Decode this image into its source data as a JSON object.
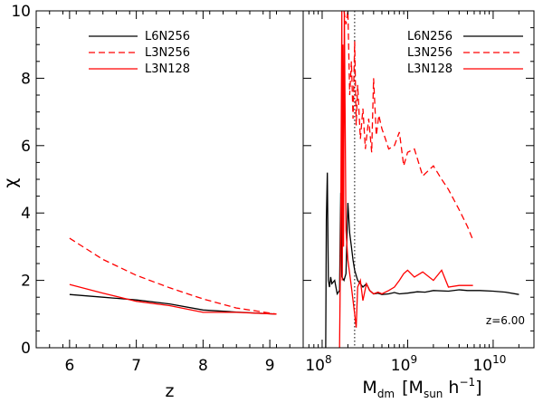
{
  "chart_data": [
    {
      "type": "line",
      "panel": "left",
      "xlabel": "z",
      "ylabel": "χ",
      "xlim": [
        5.5,
        9.5
      ],
      "ylim": [
        0,
        10
      ],
      "xticks": [
        6,
        7,
        8,
        9
      ],
      "yticks": [
        0,
        2,
        4,
        6,
        8,
        10
      ],
      "legend_position": "top-left",
      "series": [
        {
          "name": "L6N256",
          "color": "#000000",
          "dash": "solid",
          "x": [
            6.0,
            6.5,
            7.0,
            7.5,
            8.0,
            8.5,
            9.1
          ],
          "y": [
            1.58,
            1.5,
            1.42,
            1.3,
            1.12,
            1.06,
            1.0
          ]
        },
        {
          "name": "L3N256",
          "color": "#ff0000",
          "dash": "dashed",
          "x": [
            6.0,
            6.5,
            7.0,
            7.5,
            8.0,
            8.5,
            9.1
          ],
          "y": [
            3.25,
            2.62,
            2.15,
            1.78,
            1.45,
            1.18,
            1.0
          ]
        },
        {
          "name": "L3N128",
          "color": "#ff0000",
          "dash": "solid",
          "x": [
            6.0,
            6.5,
            7.0,
            7.5,
            8.0,
            8.5,
            9.1
          ],
          "y": [
            1.88,
            1.62,
            1.38,
            1.25,
            1.05,
            1.05,
            1.0
          ]
        }
      ]
    },
    {
      "type": "line",
      "panel": "right",
      "xlabel_main": "M",
      "xlabel_main_sub": "dm",
      "xlabel_unit_open": "[M",
      "xlabel_unit_sub": "sun",
      "xlabel_unit_h": "h",
      "xlabel_unit_exp": "−1",
      "xlabel_unit_close": "]",
      "xscale": "log",
      "xlim": [
        60000000,
        30000000000
      ],
      "ylim": [
        0,
        10
      ],
      "xtick_values": [
        100000000,
        1000000000,
        10000000000
      ],
      "xtick_labels": [
        {
          "base": "10",
          "exp": "8"
        },
        {
          "base": "10",
          "exp": "9"
        },
        {
          "base": "10",
          "exp": "10"
        }
      ],
      "yticks": [
        0,
        2,
        4,
        6,
        8,
        10
      ],
      "legend_position": "top-right",
      "annotation": "z=6.00",
      "vline_x": 240000000,
      "series": [
        {
          "name": "L6N256",
          "color": "#000000",
          "dash": "solid",
          "x": [
            110000000,
            112000000,
            115000000,
            118000000,
            122000000,
            126000000,
            130000000,
            140000000,
            150000000,
            160000000,
            165000000,
            170000000,
            180000000,
            190000000,
            200000000,
            210000000,
            220000000,
            230000000,
            240000000,
            260000000,
            280000000,
            300000000,
            330000000,
            360000000,
            400000000,
            450000000,
            500000000,
            600000000,
            700000000,
            800000000,
            1000000000,
            1300000000,
            1600000000,
            2000000000,
            3000000000,
            4000000000,
            5000000000,
            7000000000,
            10000000000,
            14000000000,
            20000000000
          ],
          "y": [
            0.0,
            3.8,
            5.2,
            2.0,
            1.8,
            2.1,
            1.9,
            2.0,
            1.6,
            1.7,
            4.6,
            2.1,
            2.0,
            2.2,
            4.3,
            3.4,
            3.0,
            2.6,
            2.3,
            2.0,
            1.9,
            1.8,
            1.9,
            1.7,
            1.6,
            1.62,
            1.58,
            1.6,
            1.64,
            1.6,
            1.62,
            1.66,
            1.65,
            1.7,
            1.68,
            1.72,
            1.7,
            1.7,
            1.68,
            1.65,
            1.58
          ]
        },
        {
          "name": "L3N256",
          "color": "#ff0000",
          "dash": "dashed",
          "x": [
            180000000,
            190000000,
            200000000,
            210000000,
            220000000,
            230000000,
            240000000,
            250000000,
            260000000,
            280000000,
            300000000,
            320000000,
            350000000,
            380000000,
            400000000,
            430000000,
            460000000,
            500000000,
            550000000,
            600000000,
            700000000,
            800000000,
            900000000,
            1000000000,
            1200000000,
            1500000000,
            2000000000,
            2500000000,
            3000000000,
            4000000000,
            5000000000,
            5800000000
          ],
          "y": [
            10.0,
            9.6,
            10.0,
            7.5,
            8.5,
            6.8,
            9.1,
            6.6,
            7.8,
            6.2,
            7.1,
            5.9,
            6.8,
            5.8,
            8.0,
            6.3,
            6.9,
            6.5,
            6.2,
            5.9,
            6.0,
            6.4,
            5.4,
            5.8,
            5.9,
            5.1,
            5.4,
            5.0,
            4.7,
            4.1,
            3.6,
            3.2
          ]
        },
        {
          "name": "L3N128",
          "color": "#ff0000",
          "dash": "solid",
          "x": [
            160000000,
            165000000,
            170000000,
            172000000,
            175000000,
            178000000,
            182000000,
            190000000,
            200000000,
            210000000,
            220000000,
            240000000,
            250000000,
            260000000,
            280000000,
            300000000,
            330000000,
            360000000,
            400000000,
            450000000,
            500000000,
            600000000,
            700000000,
            800000000,
            900000000,
            1000000000,
            1200000000,
            1500000000,
            2000000000,
            2500000000,
            3000000000,
            4000000000,
            5800000000
          ],
          "y": [
            0.0,
            3.5,
            10.0,
            2.0,
            9.0,
            3.0,
            10.0,
            3.5,
            2.6,
            2.2,
            1.8,
            1.0,
            0.6,
            1.8,
            2.0,
            1.4,
            1.9,
            1.7,
            1.6,
            1.65,
            1.6,
            1.7,
            1.8,
            2.0,
            2.2,
            2.3,
            2.1,
            2.25,
            2.0,
            2.3,
            1.8,
            1.85,
            1.85
          ]
        }
      ]
    }
  ]
}
